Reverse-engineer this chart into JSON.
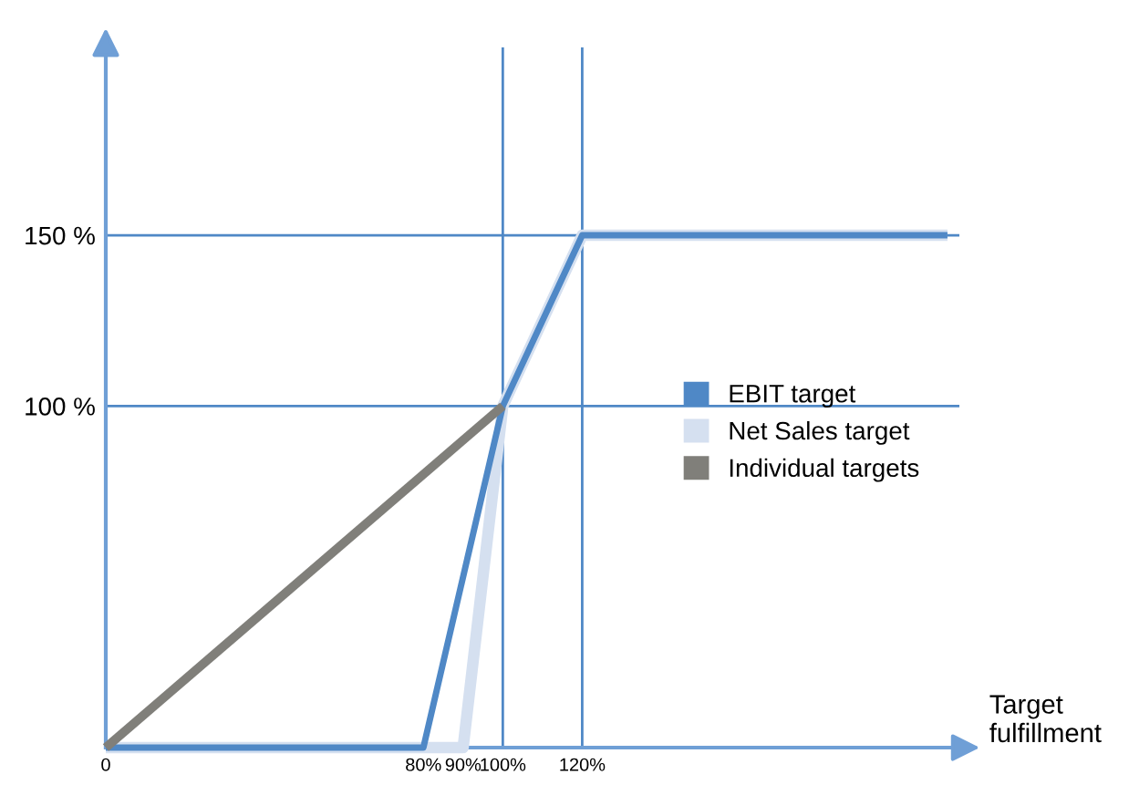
{
  "chart_data": {
    "type": "line",
    "xlabel": "Target fulfillment",
    "xlim": [
      0,
      215
    ],
    "ylim": [
      0,
      205
    ],
    "xticks": [
      {
        "value": 0,
        "label": "0"
      },
      {
        "value": 80,
        "label": "80%"
      },
      {
        "value": 90,
        "label": "90%"
      },
      {
        "value": 100,
        "label": "100%"
      },
      {
        "value": 120,
        "label": "120%"
      }
    ],
    "yticks": [
      {
        "value": 100,
        "label": "100 %"
      },
      {
        "value": 150,
        "label": "150 %"
      }
    ],
    "series": [
      {
        "name": "Net Sales target",
        "color": "#d5e0f0",
        "x": [
          0,
          90,
          100,
          120,
          212
        ],
        "values": [
          0,
          0,
          100,
          150,
          150
        ]
      },
      {
        "name": "EBIT target",
        "color": "#4f88c6",
        "x": [
          0,
          80,
          100,
          120,
          212
        ],
        "values": [
          0,
          0,
          100,
          150,
          150
        ]
      },
      {
        "name": "Individual targets",
        "color": "#807f7a",
        "x": [
          0,
          100
        ],
        "values": [
          0,
          100
        ]
      }
    ],
    "ref_lines": [
      {
        "axis": "y",
        "value": 100,
        "color": "#4f88c6"
      },
      {
        "axis": "y",
        "value": 150,
        "color": "#4f88c6"
      },
      {
        "axis": "x",
        "value": 100,
        "color": "#4f88c6"
      },
      {
        "axis": "x",
        "value": 120,
        "color": "#4f88c6"
      }
    ],
    "legend": "right",
    "grid": false,
    "marker": "none",
    "line_style": "solid"
  }
}
